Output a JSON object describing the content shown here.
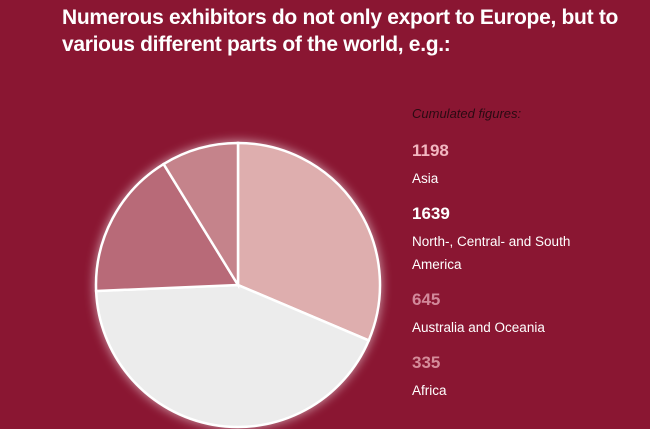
{
  "title": "Numerous exhibitors do not only export to Europe, but to various different parts of the world, e.g.:",
  "chart_data": {
    "type": "pie",
    "title": "Numerous exhibitors do not only export to Europe, but to various different parts of the world, e.g.:",
    "legend_title": "Cumulated figures:",
    "legend_placement": "right",
    "slices": [
      {
        "label": "Asia",
        "value": 1198,
        "color": "#deaeae",
        "number_color": "#f2b6c0"
      },
      {
        "label": "North-, Central- and South America",
        "value": 1639,
        "color": "#ececec",
        "number_color": "#ffffff"
      },
      {
        "label": "Australia and Oceania",
        "value": 645,
        "color": "#b86a78",
        "number_color": "#d2889a"
      },
      {
        "label": "Africa",
        "value": 335,
        "color": "#c5838b",
        "number_color": "#d58c9a"
      }
    ]
  },
  "colors": {
    "background": "#8a1632"
  }
}
